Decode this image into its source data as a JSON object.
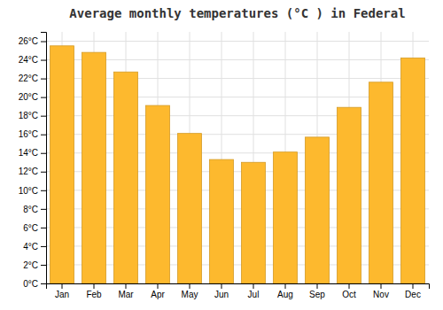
{
  "chart_data": {
    "type": "bar",
    "title": "Average monthly temperatures (°C ) in Federal",
    "categories": [
      "Jan",
      "Feb",
      "Mar",
      "Apr",
      "May",
      "Jun",
      "Jul",
      "Aug",
      "Sep",
      "Oct",
      "Nov",
      "Dec"
    ],
    "values": [
      25.5,
      24.8,
      22.7,
      19.1,
      16.1,
      13.3,
      13.0,
      14.1,
      15.7,
      18.9,
      21.6,
      24.2
    ],
    "color": "#FDB92E",
    "ylim": [
      0,
      27
    ],
    "yticks": [
      {
        "value": 0,
        "label": "0°C"
      },
      {
        "value": 2,
        "label": "2°C"
      },
      {
        "value": 4,
        "label": "4°C"
      },
      {
        "value": 6,
        "label": "6°C"
      },
      {
        "value": 8,
        "label": "8°C"
      },
      {
        "value": 10,
        "label": "10°C"
      },
      {
        "value": 12,
        "label": "12°C"
      },
      {
        "value": 14,
        "label": "14°C"
      },
      {
        "value": 16,
        "label": "16°C"
      },
      {
        "value": 18,
        "label": "18°C"
      },
      {
        "value": 20,
        "label": "20°C"
      },
      {
        "value": 22,
        "label": "22°C"
      },
      {
        "value": 24,
        "label": "24°C"
      },
      {
        "value": 26,
        "label": "26°C"
      }
    ],
    "grid": true
  }
}
